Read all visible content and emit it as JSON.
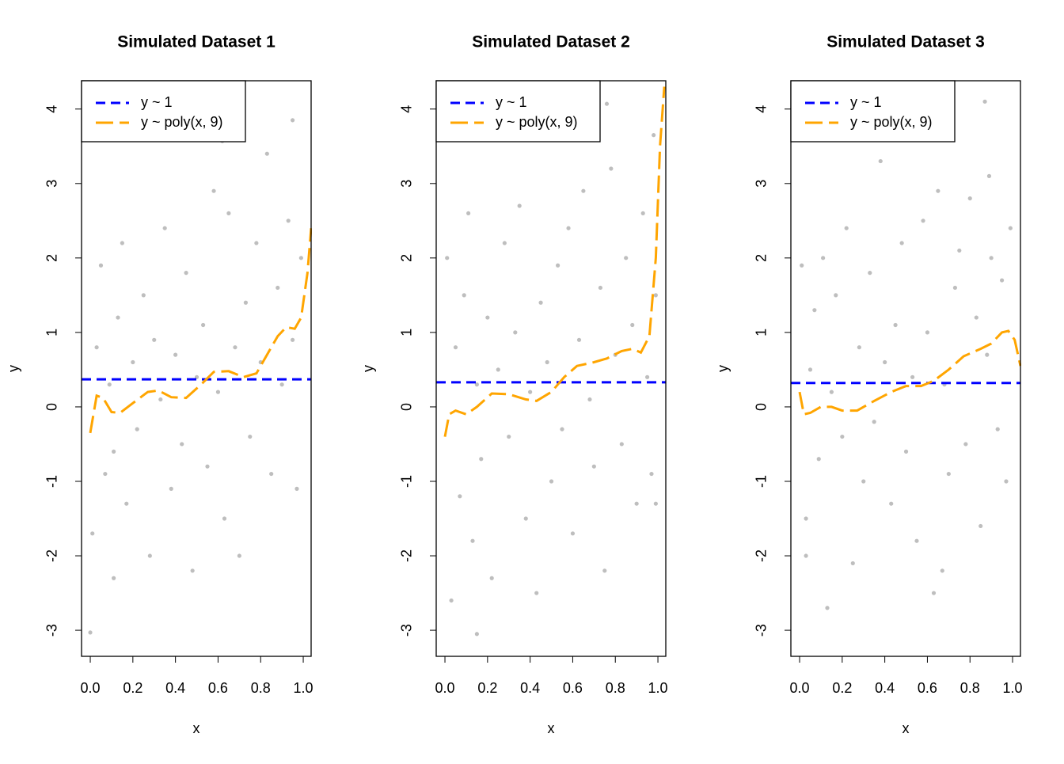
{
  "chart_data": [
    {
      "type": "scatter",
      "title": "Simulated Dataset 1",
      "xlabel": "x",
      "ylabel": "y",
      "xlim": [
        -0.041,
        1.037
      ],
      "ylim": [
        -3.35,
        4.38
      ],
      "xticks": [
        {
          "value": 0,
          "label": "0.0"
        },
        0.2,
        0.4,
        0.6,
        0.8,
        {
          "value": 1,
          "label": "1.0"
        }
      ],
      "yticks": [
        -3,
        -2,
        -1,
        0,
        1,
        2,
        3,
        4
      ],
      "color": "#bebebe",
      "x": [
        0.01,
        0.03,
        0.05,
        0.07,
        0.09,
        0.11,
        0.13,
        0.15,
        0.17,
        0.2,
        0.22,
        0.25,
        0.28,
        0.3,
        0.33,
        0.35,
        0.38,
        0.4,
        0.43,
        0.45,
        0.48,
        0.5,
        0.53,
        0.55,
        0.58,
        0.6,
        0.63,
        0.65,
        0.68,
        0.7,
        0.73,
        0.75,
        0.78,
        0.8,
        0.83,
        0.85,
        0.88,
        0.9,
        0.93,
        0.95,
        0.97,
        0.99,
        0.0,
        0.62,
        0.95,
        0.11
      ],
      "values": [
        -1.7,
        0.8,
        1.9,
        -0.9,
        0.3,
        -0.6,
        1.2,
        2.2,
        -1.3,
        0.6,
        -0.3,
        1.5,
        -2.0,
        0.9,
        0.1,
        2.4,
        -1.1,
        0.7,
        -0.5,
        1.8,
        -2.2,
        0.4,
        1.1,
        -0.8,
        2.9,
        0.2,
        -1.5,
        2.6,
        0.8,
        -2.0,
        1.4,
        -0.4,
        2.2,
        0.6,
        3.4,
        -0.9,
        1.6,
        0.3,
        2.5,
        0.9,
        -1.1,
        2.0,
        -3.03,
        3.57,
        3.85,
        -2.3
      ],
      "legend": "topleft",
      "series": [
        {
          "name": "y ~ 1",
          "color": "#0000ff",
          "x": [
            -0.041,
            1.037
          ],
          "values": [
            0.37,
            0.37
          ]
        },
        {
          "name": "y ~ poly(x, 9)",
          "color": "#ffa500",
          "x": [
            0.0,
            0.03,
            0.06,
            0.1,
            0.14,
            0.2,
            0.27,
            0.32,
            0.38,
            0.45,
            0.52,
            0.58,
            0.65,
            0.72,
            0.78,
            0.83,
            0.88,
            0.92,
            0.96,
            0.99,
            1.02,
            1.037
          ],
          "values": [
            -0.35,
            0.15,
            0.12,
            -0.07,
            -0.08,
            0.05,
            0.2,
            0.22,
            0.13,
            0.12,
            0.3,
            0.47,
            0.48,
            0.4,
            0.45,
            0.7,
            0.95,
            1.07,
            1.05,
            1.2,
            1.8,
            2.4
          ]
        }
      ]
    },
    {
      "type": "scatter",
      "title": "Simulated Dataset 2",
      "xlabel": "x",
      "ylabel": "y",
      "xlim": [
        -0.041,
        1.037
      ],
      "ylim": [
        -3.35,
        4.38
      ],
      "xticks": [
        {
          "value": 0,
          "label": "0.0"
        },
        0.2,
        0.4,
        0.6,
        0.8,
        {
          "value": 1,
          "label": "1.0"
        }
      ],
      "yticks": [
        -3,
        -2,
        -1,
        0,
        1,
        2,
        3,
        4
      ],
      "color": "#bebebe",
      "x": [
        0.01,
        0.03,
        0.05,
        0.07,
        0.09,
        0.11,
        0.13,
        0.15,
        0.17,
        0.2,
        0.22,
        0.25,
        0.28,
        0.3,
        0.33,
        0.35,
        0.38,
        0.4,
        0.43,
        0.45,
        0.48,
        0.5,
        0.53,
        0.55,
        0.58,
        0.6,
        0.63,
        0.65,
        0.68,
        0.7,
        0.73,
        0.75,
        0.78,
        0.8,
        0.83,
        0.85,
        0.88,
        0.9,
        0.93,
        0.95,
        0.97,
        0.99,
        0.15,
        0.76,
        0.98,
        0.99
      ],
      "values": [
        2.0,
        -2.6,
        0.8,
        -1.2,
        1.5,
        2.6,
        -1.8,
        0.3,
        -0.7,
        1.2,
        -2.3,
        0.5,
        2.2,
        -0.4,
        1.0,
        2.7,
        -1.5,
        0.2,
        -2.5,
        1.4,
        0.6,
        -1.0,
        1.9,
        -0.3,
        2.4,
        -1.7,
        0.9,
        2.9,
        0.1,
        -0.8,
        1.6,
        -2.2,
        3.2,
        0.7,
        -0.5,
        2.0,
        1.1,
        -1.3,
        2.6,
        0.4,
        -0.9,
        1.5,
        -3.05,
        4.07,
        3.65,
        -1.3
      ],
      "legend": "topleft",
      "series": [
        {
          "name": "y ~ 1",
          "color": "#0000ff",
          "x": [
            -0.041,
            1.037
          ],
          "values": [
            0.33,
            0.33
          ]
        },
        {
          "name": "y ~ poly(x, 9)",
          "color": "#ffa500",
          "x": [
            0.0,
            0.02,
            0.05,
            0.1,
            0.15,
            0.22,
            0.3,
            0.38,
            0.43,
            0.5,
            0.56,
            0.62,
            0.7,
            0.76,
            0.83,
            0.88,
            0.92,
            0.96,
            0.99,
            1.01,
            1.03
          ],
          "values": [
            -0.4,
            -0.1,
            -0.05,
            -0.1,
            0.0,
            0.18,
            0.17,
            0.1,
            0.08,
            0.2,
            0.4,
            0.55,
            0.6,
            0.65,
            0.75,
            0.78,
            0.73,
            0.95,
            2.0,
            3.5,
            4.3
          ]
        }
      ]
    },
    {
      "type": "scatter",
      "title": "Simulated Dataset 3",
      "xlabel": "x",
      "ylabel": "y",
      "xlim": [
        -0.041,
        1.037
      ],
      "ylim": [
        -3.35,
        4.38
      ],
      "xticks": [
        {
          "value": 0,
          "label": "0.0"
        },
        0.2,
        0.4,
        0.6,
        0.8,
        {
          "value": 1,
          "label": "1.0"
        }
      ],
      "yticks": [
        -3,
        -2,
        -1,
        0,
        1,
        2,
        3,
        4
      ],
      "color": "#bebebe",
      "x": [
        0.01,
        0.03,
        0.05,
        0.07,
        0.09,
        0.11,
        0.13,
        0.15,
        0.17,
        0.2,
        0.22,
        0.25,
        0.28,
        0.3,
        0.33,
        0.35,
        0.38,
        0.4,
        0.43,
        0.45,
        0.48,
        0.5,
        0.53,
        0.55,
        0.58,
        0.6,
        0.63,
        0.65,
        0.68,
        0.7,
        0.73,
        0.75,
        0.78,
        0.8,
        0.83,
        0.85,
        0.88,
        0.9,
        0.93,
        0.95,
        0.97,
        0.99,
        0.03,
        0.87,
        0.67,
        0.89
      ],
      "values": [
        1.9,
        -1.5,
        0.5,
        1.3,
        -0.7,
        2.0,
        -2.7,
        0.2,
        1.5,
        -0.4,
        2.4,
        -2.1,
        0.8,
        -1.0,
        1.8,
        -0.2,
        3.3,
        0.6,
        -1.3,
        1.1,
        2.2,
        -0.6,
        0.4,
        -1.8,
        2.5,
        1.0,
        -2.5,
        2.9,
        0.3,
        -0.9,
        1.6,
        2.1,
        -0.5,
        2.8,
        1.2,
        -1.6,
        0.7,
        2.0,
        -0.3,
        1.7,
        -1.0,
        2.4,
        -2.0,
        4.1,
        -2.2,
        3.1
      ],
      "legend": "topleft",
      "series": [
        {
          "name": "y ~ 1",
          "color": "#0000ff",
          "x": [
            -0.041,
            1.037
          ],
          "values": [
            0.32,
            0.32
          ]
        },
        {
          "name": "y ~ poly(x, 9)",
          "color": "#ffa500",
          "x": [
            0.0,
            0.02,
            0.05,
            0.1,
            0.15,
            0.2,
            0.27,
            0.35,
            0.43,
            0.5,
            0.57,
            0.63,
            0.7,
            0.77,
            0.85,
            0.9,
            0.95,
            0.98,
            1.01,
            1.037
          ],
          "values": [
            0.2,
            -0.1,
            -0.08,
            0.0,
            0.0,
            -0.05,
            -0.05,
            0.08,
            0.2,
            0.28,
            0.28,
            0.35,
            0.5,
            0.68,
            0.78,
            0.85,
            1.0,
            1.02,
            0.9,
            0.55
          ]
        }
      ]
    }
  ]
}
